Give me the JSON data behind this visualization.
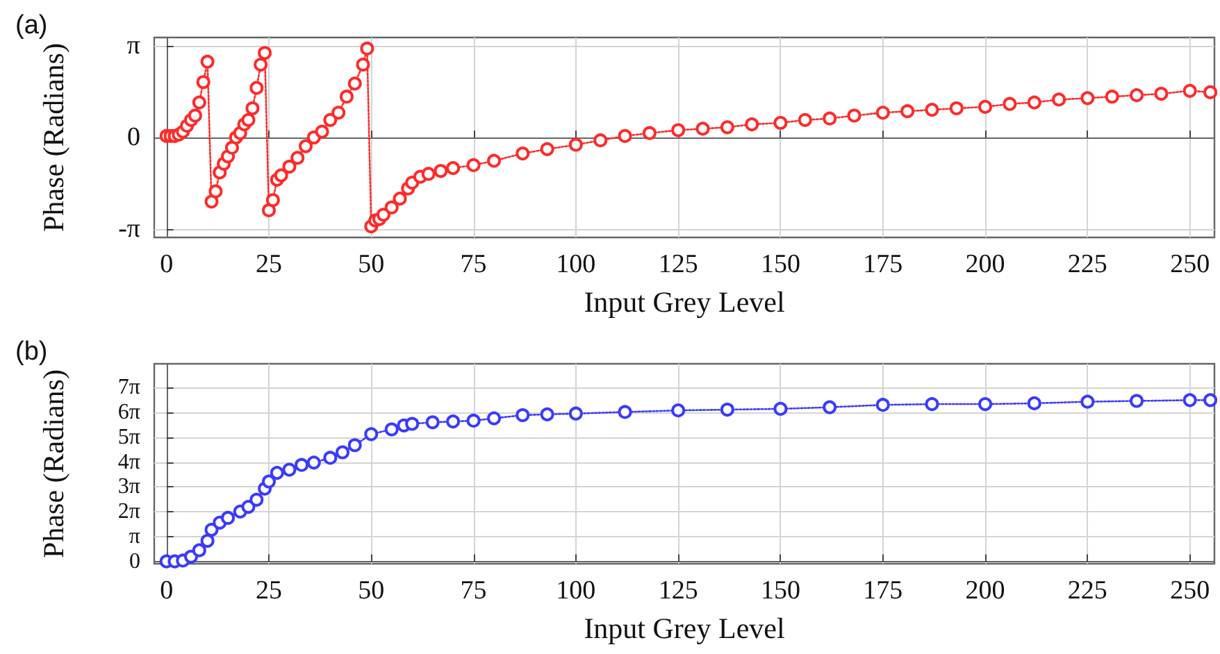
{
  "chart_data": [
    {
      "type": "line",
      "title": "(a)",
      "xlabel": "Input Grey Level",
      "ylabel": "Phase (Radians)",
      "marker": "circle",
      "line_style": "dotted",
      "grid": true,
      "xlim": [
        -3,
        256
      ],
      "xticks": [
        0,
        25,
        50,
        75,
        100,
        125,
        150,
        175,
        200,
        225,
        250
      ],
      "ylim": [
        -3.43,
        3.43
      ],
      "yticks": [
        {
          "value": -3.1416,
          "label": "-π"
        },
        0,
        {
          "value": 3.1416,
          "label": "π"
        }
      ],
      "series": [
        {
          "color": "#ff2a2a",
          "x": [
            0,
            1,
            2,
            3,
            4,
            5,
            6,
            7,
            8,
            9,
            10,
            11,
            12,
            13,
            14,
            15,
            16,
            17,
            18,
            19,
            20,
            21,
            22,
            23,
            24,
            25,
            26,
            27,
            28,
            30,
            32,
            34,
            36,
            38,
            40,
            42,
            44,
            46,
            48,
            49,
            50,
            51,
            52,
            53,
            55,
            57,
            59,
            60,
            62,
            64,
            67,
            70,
            75,
            80,
            87,
            93,
            100,
            106,
            112,
            118,
            125,
            131,
            137,
            143,
            150,
            156,
            162,
            168,
            175,
            181,
            187,
            193,
            200,
            206,
            212,
            218,
            225,
            231,
            237,
            243,
            250,
            255
          ],
          "values": [
            0.05,
            0.05,
            0.05,
            0.1,
            0.2,
            0.4,
            0.6,
            0.75,
            1.2,
            1.9,
            2.6,
            -2.2,
            -1.85,
            -1.2,
            -0.9,
            -0.65,
            -0.35,
            0,
            0.15,
            0.45,
            0.6,
            1.0,
            1.7,
            2.5,
            2.9,
            -2.5,
            -2.15,
            -1.45,
            -1.3,
            -1.0,
            -0.7,
            -0.3,
            0,
            0.2,
            0.6,
            0.85,
            1.4,
            1.85,
            2.5,
            3.05,
            -3.05,
            -2.85,
            -2.8,
            -2.65,
            -2.4,
            -2.1,
            -1.75,
            -1.55,
            -1.35,
            -1.25,
            -1.15,
            -1.05,
            -0.95,
            -0.8,
            -0.55,
            -0.4,
            -0.25,
            -0.1,
            0.05,
            0.15,
            0.25,
            0.3,
            0.35,
            0.45,
            0.5,
            0.6,
            0.65,
            0.75,
            0.85,
            0.9,
            0.95,
            1.0,
            1.05,
            1.15,
            1.2,
            1.3,
            1.35,
            1.4,
            1.45,
            1.5,
            1.6,
            1.55
          ]
        }
      ]
    },
    {
      "type": "line",
      "title": "(b)",
      "xlabel": "Input Grey Level",
      "ylabel": "Phase (Radians)",
      "marker": "circle",
      "line_style": "dotted",
      "grid": true,
      "xlim": [
        -3,
        256
      ],
      "xticks": [
        0,
        25,
        50,
        75,
        100,
        125,
        150,
        175,
        200,
        225,
        250
      ],
      "ylim": [
        -0.3,
        25
      ],
      "yticks": [
        0,
        {
          "value": 3.1416,
          "label": "π"
        },
        {
          "value": 6.2832,
          "label": "2π"
        },
        {
          "value": 9.4248,
          "label": "3π"
        },
        {
          "value": 12.5664,
          "label": "4π"
        },
        {
          "value": 15.708,
          "label": "5π"
        },
        {
          "value": 18.8496,
          "label": "6π"
        },
        {
          "value": 21.9911,
          "label": "7π"
        }
      ],
      "series": [
        {
          "color": "#3a3aff",
          "x": [
            0,
            2,
            4,
            6,
            8,
            10,
            11,
            13,
            15,
            18,
            20,
            22,
            24,
            25,
            27,
            30,
            33,
            36,
            40,
            43,
            46,
            50,
            55,
            58,
            60,
            65,
            70,
            75,
            80,
            87,
            93,
            100,
            112,
            125,
            137,
            150,
            162,
            175,
            187,
            200,
            212,
            225,
            237,
            250,
            255
          ],
          "values": [
            0,
            0,
            0.1,
            0.6,
            1.4,
            2.6,
            4.0,
            4.9,
            5.5,
            6.3,
            6.9,
            7.8,
            9.2,
            10.1,
            11.2,
            11.6,
            12.2,
            12.5,
            13.1,
            13.8,
            14.7,
            16.1,
            16.7,
            17.2,
            17.4,
            17.6,
            17.7,
            17.8,
            18.1,
            18.5,
            18.6,
            18.7,
            18.9,
            19.1,
            19.2,
            19.3,
            19.5,
            19.8,
            19.9,
            19.9,
            20.0,
            20.2,
            20.3,
            20.4,
            20.4
          ]
        }
      ]
    }
  ]
}
